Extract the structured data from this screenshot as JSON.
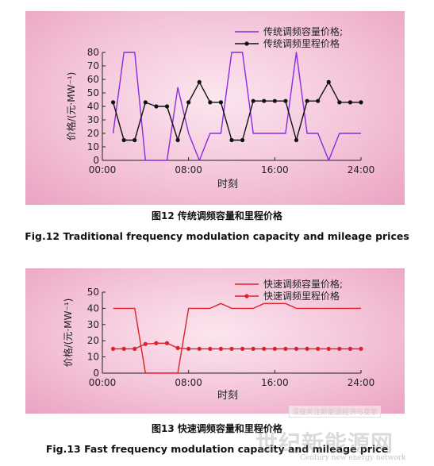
{
  "chart_data": [
    {
      "type": "line",
      "xlabel": "时刻",
      "ylabel": "价格/(元·MW⁻¹)",
      "ylim": [
        0,
        80
      ],
      "yticks": [
        "0",
        "10",
        "20",
        "30",
        "40",
        "50",
        "60",
        "70",
        "80"
      ],
      "xticks": [
        "00:00",
        "08:00",
        "16:00",
        "24:00"
      ],
      "legend_position": "top-right",
      "grid": false,
      "series": [
        {
          "name": "传统调频容量价格;",
          "color": "#8a2be2",
          "marker": "none",
          "x": [
            1,
            2,
            3,
            4,
            5,
            6,
            7,
            8,
            9,
            10,
            11,
            12,
            13,
            14,
            15,
            16,
            17,
            18,
            19,
            20,
            21,
            22,
            23,
            24
          ],
          "values": [
            20,
            80,
            80,
            0,
            0,
            0,
            54,
            20,
            0,
            20,
            20,
            80,
            80,
            20,
            20,
            20,
            20,
            80,
            20,
            20,
            0,
            20,
            20,
            20
          ]
        },
        {
          "name": "传统调频里程价格",
          "color": "#111111",
          "marker": "dot",
          "x": [
            1,
            2,
            3,
            4,
            5,
            6,
            7,
            8,
            9,
            10,
            11,
            12,
            13,
            14,
            15,
            16,
            17,
            18,
            19,
            20,
            21,
            22,
            23,
            24
          ],
          "values": [
            43,
            15,
            15,
            43,
            40,
            40,
            15,
            43,
            58,
            43,
            43,
            15,
            15,
            44,
            44,
            44,
            44,
            15,
            44,
            44,
            58,
            43,
            43,
            43
          ]
        }
      ]
    },
    {
      "type": "line",
      "xlabel": "时刻",
      "ylabel": "价格/(元·MW⁻¹)",
      "ylim": [
        0,
        50
      ],
      "yticks": [
        "0",
        "10",
        "20",
        "30",
        "40",
        "50"
      ],
      "xticks": [
        "00:00",
        "08:00",
        "16:00",
        "24:00"
      ],
      "legend_position": "top-right",
      "grid": false,
      "series": [
        {
          "name": "快速调频容量价格;",
          "color": "#e0202a",
          "marker": "none",
          "x": [
            1,
            2,
            3,
            4,
            5,
            6,
            7,
            8,
            9,
            10,
            11,
            12,
            13,
            14,
            15,
            16,
            17,
            18,
            19,
            20,
            21,
            22,
            23,
            24
          ],
          "values": [
            40,
            40,
            40,
            0,
            0,
            0,
            0,
            40,
            40,
            40,
            43,
            40,
            40,
            40,
            43,
            43,
            43,
            40,
            40,
            40,
            40,
            40,
            40,
            40
          ]
        },
        {
          "name": "快速调频里程价格",
          "color": "#e0202a",
          "marker": "dot",
          "x": [
            1,
            2,
            3,
            4,
            5,
            6,
            7,
            8,
            9,
            10,
            11,
            12,
            13,
            14,
            15,
            16,
            17,
            18,
            19,
            20,
            21,
            22,
            23,
            24
          ],
          "values": [
            15,
            15,
            15,
            18,
            18.5,
            18.5,
            15.5,
            15,
            15,
            15,
            15,
            15,
            15,
            15,
            15,
            15,
            15,
            15,
            15,
            15,
            15,
            15,
            15,
            15
          ]
        }
      ]
    }
  ],
  "captions": {
    "fig12_cn": "图12  传统调频容量和里程价格",
    "fig12_en": "Fig.12  Traditional frequency modulation capacity and mileage prices",
    "fig13_cn": "图13  快速调频容量和里程价格",
    "fig13_en": "Fig.13  Fast frequency modulation capacity and mileage price"
  },
  "watermark": {
    "tag": "深度关注新能源经济与变革",
    "big": "世纪新能源网",
    "small": "Century new energy network"
  }
}
